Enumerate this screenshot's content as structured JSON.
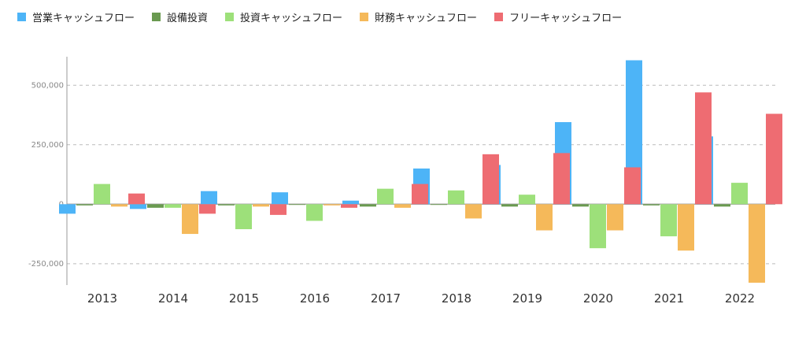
{
  "chart_data": {
    "type": "bar",
    "title": "",
    "xlabel": "",
    "ylabel": "",
    "categories": [
      "2013",
      "2014",
      "2015",
      "2016",
      "2017",
      "2018",
      "2019",
      "2020",
      "2021",
      "2022"
    ],
    "ylim": [
      -340000,
      620000
    ],
    "yticks": [
      -250000,
      0,
      250000,
      500000
    ],
    "ytick_labels": [
      "-250,000",
      "0",
      "250,000",
      "500,000"
    ],
    "grid": true,
    "legend_position": "top-left",
    "series": [
      {
        "name": "営業キャッシュフロー",
        "color": "#4db4f7",
        "values": [
          -40000,
          -20000,
          55000,
          50000,
          15000,
          150000,
          165000,
          345000,
          605000,
          285000
        ]
      },
      {
        "name": "設備投資",
        "color": "#6a9a50",
        "values": [
          -5000,
          -15000,
          -5000,
          -3000,
          -10000,
          -3000,
          -10000,
          -10000,
          -5000,
          -10000
        ]
      },
      {
        "name": "投資キャッシュフロー",
        "color": "#9de07a",
        "values": [
          85000,
          -15000,
          -105000,
          -70000,
          65000,
          58000,
          40000,
          -185000,
          -135000,
          90000
        ]
      },
      {
        "name": "財務キャッシュフロー",
        "color": "#f5b95a",
        "values": [
          -10000,
          -125000,
          -10000,
          -5000,
          -15000,
          -60000,
          -110000,
          -110000,
          -195000,
          -330000
        ]
      },
      {
        "name": "フリーキャッシュフロー",
        "color": "#ee6c72",
        "values": [
          45000,
          -40000,
          -45000,
          -15000,
          85000,
          210000,
          215000,
          155000,
          470000,
          380000
        ]
      }
    ]
  }
}
